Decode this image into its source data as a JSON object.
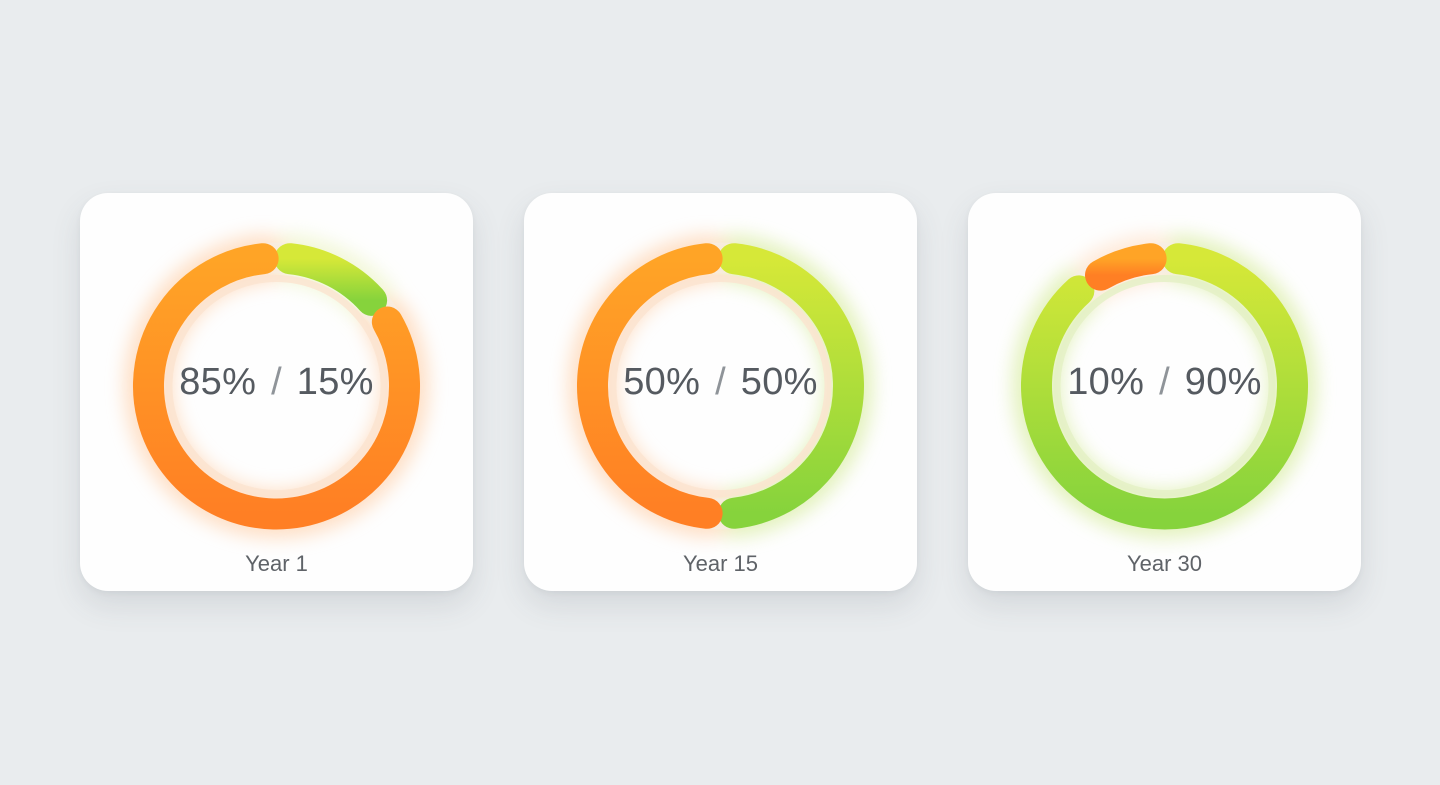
{
  "colors": {
    "background": "#e9ecee",
    "card": "#fefefe",
    "orange_start": "#ffa426",
    "orange_end": "#ff7f24",
    "green_start": "#d6e838",
    "green_end": "#86d33c",
    "text": "#555a60"
  },
  "chart_data": [
    {
      "type": "pie",
      "style": "donut",
      "categories": [
        "orange",
        "green"
      ],
      "values": [
        85,
        15
      ],
      "center_label": {
        "left": "85%",
        "sep": "/",
        "right": "15%"
      },
      "caption": "Year 1"
    },
    {
      "type": "pie",
      "style": "donut",
      "categories": [
        "orange",
        "green"
      ],
      "values": [
        50,
        50
      ],
      "center_label": {
        "left": "50%",
        "sep": "/",
        "right": "50%"
      },
      "caption": "Year 15"
    },
    {
      "type": "pie",
      "style": "donut",
      "categories": [
        "orange",
        "green"
      ],
      "values": [
        10,
        90
      ],
      "center_label": {
        "left": "10%",
        "sep": "/",
        "right": "90%"
      },
      "caption": "Year 30"
    }
  ]
}
